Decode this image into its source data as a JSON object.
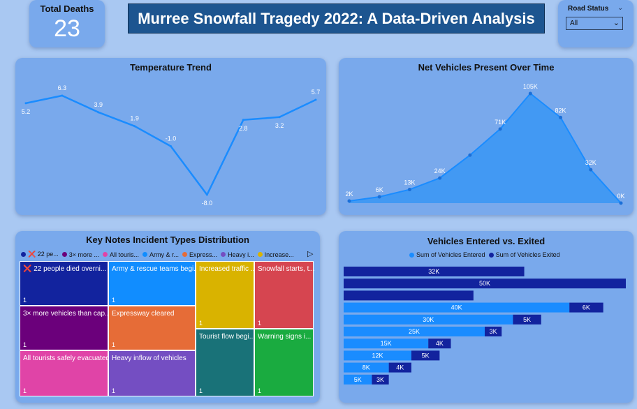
{
  "kpi": {
    "label": "Total Deaths",
    "value": "23"
  },
  "page_title": "Murree Snowfall Tragedy 2022: A Data-Driven Analysis",
  "slicer": {
    "label": "Road Status",
    "value": "All",
    "chevron_icon": "chevron-down-icon"
  },
  "colors": {
    "background": "#a9c8f2",
    "card": "#79a9ec",
    "title_box": "#1d5590",
    "line": "#1a8cff",
    "entered": "#1a8cff",
    "exited": "#12239e"
  },
  "chart_data": [
    {
      "id": "temperature",
      "type": "line",
      "title": "Temperature Trend",
      "values": [
        5.2,
        6.3,
        3.9,
        1.9,
        -1.0,
        -8.0,
        2.8,
        3.2,
        5.7
      ],
      "labels": [
        "5.2",
        "6.3",
        "3.9",
        "1.9",
        "-1.0",
        "-8.0",
        "2.8",
        "3.2",
        "5.7"
      ],
      "ylim": [
        -8,
        6.3
      ]
    },
    {
      "id": "net_vehicles",
      "type": "area",
      "title": "Net Vehicles Present Over Time",
      "values": [
        2000,
        6000,
        13000,
        24000,
        46000,
        71000,
        105000,
        82000,
        32000,
        0
      ],
      "labels": [
        "2K",
        "6K",
        "13K",
        "24K",
        "",
        "71K",
        "105K",
        "82K",
        "32K",
        "0K"
      ],
      "ylim": [
        0,
        105000
      ]
    },
    {
      "id": "incident_types",
      "type": "treemap",
      "title": "Key Notes Incident Types Distribution",
      "legend": [
        {
          "label": "❌ 22 pe...",
          "color": "#12239e"
        },
        {
          "label": "3× more ...",
          "color": "#6b007b"
        },
        {
          "label": "All touris...",
          "color": "#e044a7"
        },
        {
          "label": "Army & r...",
          "color": "#118dff"
        },
        {
          "label": "Express...",
          "color": "#e66c37"
        },
        {
          "label": "Heavy i...",
          "color": "#744ec2"
        },
        {
          "label": "Increase...",
          "color": "#d9b300"
        }
      ],
      "legend_arrow_icon": "play-triangle-icon",
      "tiles": [
        {
          "label": "❌ 22 people died overni...",
          "count": "1",
          "color": "#12239e"
        },
        {
          "label": "3× more vehicles than cap...",
          "count": "1",
          "color": "#6b007b"
        },
        {
          "label": "All tourists safely evacuated",
          "count": "1",
          "color": "#e044a7"
        },
        {
          "label": "Army & rescue teams begi...",
          "count": "1",
          "color": "#118dff"
        },
        {
          "label": "Expressway cleared",
          "count": "1",
          "color": "#e66c37"
        },
        {
          "label": "Heavy inflow of vehicles",
          "count": "1",
          "color": "#744ec2"
        },
        {
          "label": "Increased traffic ...",
          "count": "1",
          "color": "#d9b300"
        },
        {
          "label": "Tourist flow begi...",
          "count": "1",
          "color": "#197278"
        },
        {
          "label": "Snowfall starts, t...",
          "count": "1",
          "color": "#d64550"
        },
        {
          "label": "Warning signs i...",
          "count": "1",
          "color": "#1aab40"
        }
      ]
    },
    {
      "id": "entered_exited",
      "type": "bar",
      "orientation": "horizontal",
      "stacked": true,
      "title": "Vehicles Entered vs. Exited",
      "legend_position": "top",
      "series": [
        {
          "name": "Sum of Vehicles Entered",
          "color": "#1a8cff",
          "values": [
            0,
            0,
            0,
            40000,
            30000,
            25000,
            15000,
            12000,
            8000,
            5000
          ],
          "labels": [
            "",
            "",
            "",
            "40K",
            "30K",
            "25K",
            "15K",
            "12K",
            "8K",
            "5K"
          ]
        },
        {
          "name": "Sum of Vehicles Exited",
          "color": "#12239e",
          "values": [
            32000,
            50000,
            23000,
            6000,
            5000,
            3000,
            4000,
            5000,
            4000,
            3000
          ],
          "labels": [
            "32K",
            "50K",
            "",
            "6K",
            "5K",
            "3K",
            "4K",
            "5K",
            "4K",
            "3K"
          ]
        }
      ]
    }
  ]
}
